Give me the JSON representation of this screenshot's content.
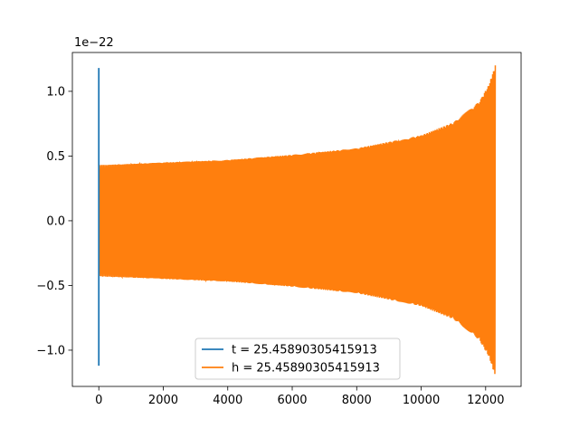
{
  "chart_data": {
    "type": "line",
    "title": "",
    "xlabel": "",
    "ylabel": "",
    "y_offset_label": "1e−22",
    "xlim": [
      -820,
      13100
    ],
    "ylim": [
      -1.28e-22,
      1.3e-22
    ],
    "x_ticks": [
      0,
      2000,
      4000,
      6000,
      8000,
      10000,
      12000
    ],
    "x_tick_labels": [
      "0",
      "2000",
      "4000",
      "6000",
      "8000",
      "10000",
      "12000"
    ],
    "y_ticks": [
      -1e-22,
      -5e-23,
      0.0,
      5e-23,
      1e-22
    ],
    "y_tick_labels": [
      "−1.0",
      "−0.5",
      "0.0",
      "0.5",
      "1.0"
    ],
    "grid": false,
    "legend_position": "lower center",
    "series": [
      {
        "name": "t = 25.45890305415913",
        "color": "#1f77b4",
        "kind": "vertical_spike",
        "x": 0,
        "y_min": -1.12e-22,
        "y_max": 1.18e-22
      },
      {
        "name": "h = 25.45890305415913",
        "color": "#ff7f0e",
        "kind": "chirp_waveform",
        "x_start": 0,
        "x_end": 12300,
        "amplitude_envelope": [
          {
            "x": 0,
            "amp": 4.3e-23
          },
          {
            "x": 2000,
            "amp": 4.5e-23
          },
          {
            "x": 4000,
            "amp": 4.7e-23
          },
          {
            "x": 6000,
            "amp": 5.1e-23
          },
          {
            "x": 8000,
            "amp": 5.6e-23
          },
          {
            "x": 10000,
            "amp": 6.6e-23
          },
          {
            "x": 11000,
            "amp": 7.6e-23
          },
          {
            "x": 11800,
            "amp": 9.2e-23
          },
          {
            "x": 12100,
            "amp": 1.05e-22
          },
          {
            "x": 12300,
            "amp": 1.2e-22
          }
        ],
        "cycles_approx": 260
      }
    ]
  }
}
